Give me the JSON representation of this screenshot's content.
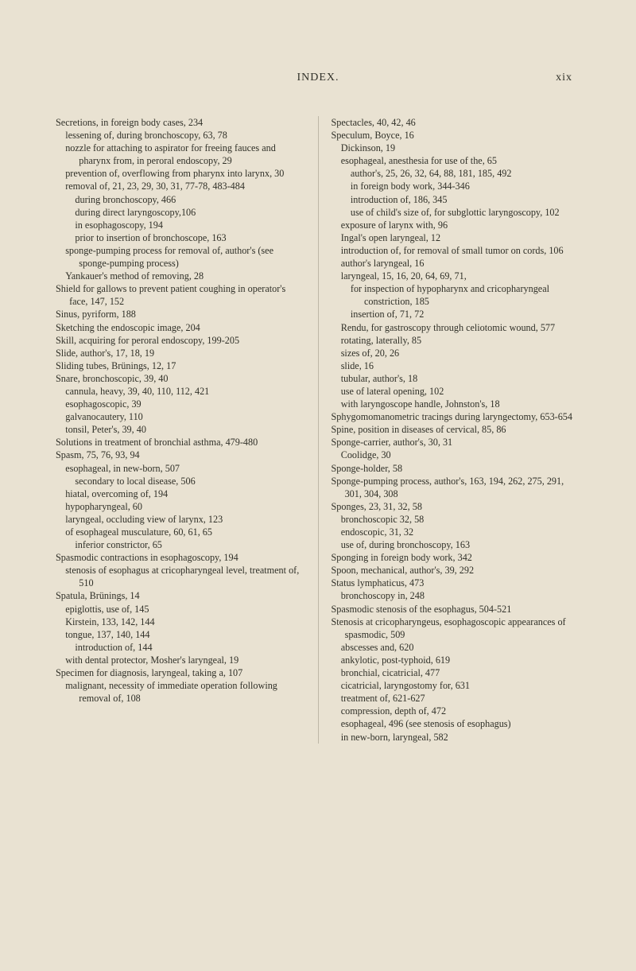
{
  "header": {
    "title": "INDEX.",
    "page_number": "xix"
  },
  "left_column": [
    {
      "l": 0,
      "t": "Secretions, in foreign body cases, 234"
    },
    {
      "l": 1,
      "t": "lessening of, during bronchoscopy, 63, 78"
    },
    {
      "l": 1,
      "t": "nozzle for attaching to aspirator for freeing fauces and pharynx from, in peroral endoscopy, 29"
    },
    {
      "l": 1,
      "t": "prevention of, overflowing from pharynx into larynx, 30"
    },
    {
      "l": 1,
      "t": "removal of, 21, 23, 29, 30, 31, 77-78, 483-484"
    },
    {
      "l": 2,
      "t": "during bronchoscopy, 466"
    },
    {
      "l": 2,
      "t": "during direct laryngoscopy,106"
    },
    {
      "l": 2,
      "t": "in esophagoscopy, 194"
    },
    {
      "l": 2,
      "t": "prior to insertion of bronchoscope, 163"
    },
    {
      "l": 1,
      "t": "sponge-pumping process for removal of, author's (see sponge-pumping process)"
    },
    {
      "l": 1,
      "t": "Yankauer's method of removing, 28"
    },
    {
      "l": 0,
      "t": "Shield for gallows to prevent patient coughing in operator's face, 147, 152"
    },
    {
      "l": 0,
      "t": "Sinus, pyriform, 188"
    },
    {
      "l": 0,
      "t": "Sketching the endoscopic image, 204"
    },
    {
      "l": 0,
      "t": "Skill, acquiring for peroral endoscopy, 199-205"
    },
    {
      "l": 0,
      "t": "Slide, author's, 17, 18, 19"
    },
    {
      "l": 0,
      "t": "Sliding tubes, Brünings, 12, 17"
    },
    {
      "l": 0,
      "t": "Snare, bronchoscopic, 39, 40"
    },
    {
      "l": 1,
      "t": "cannula, heavy, 39, 40, 110, 112, 421"
    },
    {
      "l": 1,
      "t": "esophagoscopic, 39"
    },
    {
      "l": 1,
      "t": "galvanocautery, 110"
    },
    {
      "l": 1,
      "t": "tonsil, Peter's, 39, 40"
    },
    {
      "l": 0,
      "t": "Solutions in treatment of bronchial asthma, 479-480"
    },
    {
      "l": 0,
      "t": "Spasm, 75, 76, 93, 94"
    },
    {
      "l": 1,
      "t": "esophageal, in new-born, 507"
    },
    {
      "l": 2,
      "t": "secondary to local disease, 506"
    },
    {
      "l": 1,
      "t": "hiatal, overcoming of, 194"
    },
    {
      "l": 1,
      "t": "hypopharyngeal, 60"
    },
    {
      "l": 1,
      "t": "laryngeal, occluding view of larynx, 123"
    },
    {
      "l": 1,
      "t": "of esophageal musculature, 60, 61, 65"
    },
    {
      "l": 2,
      "t": "inferior constrictor, 65"
    },
    {
      "l": 0,
      "t": "Spasmodic contractions in esophagoscopy, 194"
    },
    {
      "l": 1,
      "t": "stenosis of esophagus at cricopharyngeal level, treatment of, 510"
    },
    {
      "l": 0,
      "t": "Spatula, Brünings, 14"
    },
    {
      "l": 1,
      "t": "epiglottis, use of, 145"
    },
    {
      "l": 1,
      "t": "Kirstein, 133, 142, 144"
    },
    {
      "l": 1,
      "t": "tongue, 137, 140, 144"
    },
    {
      "l": 2,
      "t": "introduction of, 144"
    },
    {
      "l": 1,
      "t": "with dental protector, Mosher's laryngeal, 19"
    },
    {
      "l": 0,
      "t": "Specimen for diagnosis, laryngeal, taking a, 107"
    },
    {
      "l": 1,
      "t": "malignant, necessity of immediate operation following removal of, 108"
    }
  ],
  "right_column": [
    {
      "l": 0,
      "t": "Spectacles, 40, 42, 46"
    },
    {
      "l": 0,
      "t": "Speculum, Boyce, 16"
    },
    {
      "l": 1,
      "t": "Dickinson, 19"
    },
    {
      "l": 1,
      "t": "esophageal, anesthesia for use of the, 65"
    },
    {
      "l": 2,
      "t": "author's, 25, 26, 32, 64, 88, 181, 185, 492"
    },
    {
      "l": 2,
      "t": "in foreign body work, 344-346"
    },
    {
      "l": 2,
      "t": "introduction of, 186, 345"
    },
    {
      "l": 2,
      "t": "use of child's size of, for subglottic laryngoscopy, 102"
    },
    {
      "l": 1,
      "t": "exposure of larynx with, 96"
    },
    {
      "l": 1,
      "t": "Ingal's open laryngeal, 12"
    },
    {
      "l": 1,
      "t": "introduction of, for removal of small tumor on cords, 106"
    },
    {
      "l": 1,
      "t": "author's laryngeal, 16"
    },
    {
      "l": 1,
      "t": "laryngeal, 15, 16, 20, 64, 69, 71,"
    },
    {
      "l": 2,
      "t": "for inspection of hypopharynx and cricopharyngeal constriction, 185"
    },
    {
      "l": 2,
      "t": "insertion of, 71, 72"
    },
    {
      "l": 1,
      "t": "Rendu, for gastroscopy through celiotomic wound, 577"
    },
    {
      "l": 1,
      "t": "rotating, laterally, 85"
    },
    {
      "l": 1,
      "t": "sizes of, 20, 26"
    },
    {
      "l": 1,
      "t": "slide, 16"
    },
    {
      "l": 1,
      "t": "tubular, author's, 18"
    },
    {
      "l": 1,
      "t": "use of lateral opening, 102"
    },
    {
      "l": 1,
      "t": "with laryngoscope handle, Johnston's, 18"
    },
    {
      "l": 0,
      "t": "Sphygomomanometric tracings during laryngectomy, 653-654"
    },
    {
      "l": 0,
      "t": "Spine, position in diseases of cervical, 85, 86"
    },
    {
      "l": 0,
      "t": "Sponge-carrier, author's, 30, 31"
    },
    {
      "l": 1,
      "t": "Coolidge, 30"
    },
    {
      "l": 0,
      "t": "Sponge-holder, 58"
    },
    {
      "l": 0,
      "t": "Sponge-pumping process, author's, 163, 194, 262, 275, 291, 301, 304, 308"
    },
    {
      "l": 0,
      "t": "Sponges, 23, 31, 32, 58"
    },
    {
      "l": 1,
      "t": "bronchoscopic 32, 58"
    },
    {
      "l": 1,
      "t": "endoscopic, 31, 32"
    },
    {
      "l": 1,
      "t": "use of, during bronchoscopy, 163"
    },
    {
      "l": 0,
      "t": "Sponging in foreign body work, 342"
    },
    {
      "l": 0,
      "t": "Spoon, mechanical, author's, 39, 292"
    },
    {
      "l": 0,
      "t": "Status lymphaticus, 473"
    },
    {
      "l": 1,
      "t": "bronchoscopy in, 248"
    },
    {
      "l": 0,
      "t": "Spasmodic stenosis of the esophagus, 504-521"
    },
    {
      "l": 0,
      "t": "Stenosis at cricopharyngeus, esophagoscopic appearances of spasmodic, 509"
    },
    {
      "l": 1,
      "t": "abscesses and, 620"
    },
    {
      "l": 1,
      "t": "ankylotic, post-typhoid, 619"
    },
    {
      "l": 1,
      "t": "bronchial, cicatricial, 477"
    },
    {
      "l": 1,
      "t": "cicatricial, laryngostomy for, 631"
    },
    {
      "l": 1,
      "t": "treatment of, 621-627"
    },
    {
      "l": 1,
      "t": "compression, depth of, 472"
    },
    {
      "l": 1,
      "t": "esophageal, 496 (see stenosis of esophagus)"
    },
    {
      "l": 1,
      "t": "in new-born, laryngeal, 582"
    }
  ]
}
